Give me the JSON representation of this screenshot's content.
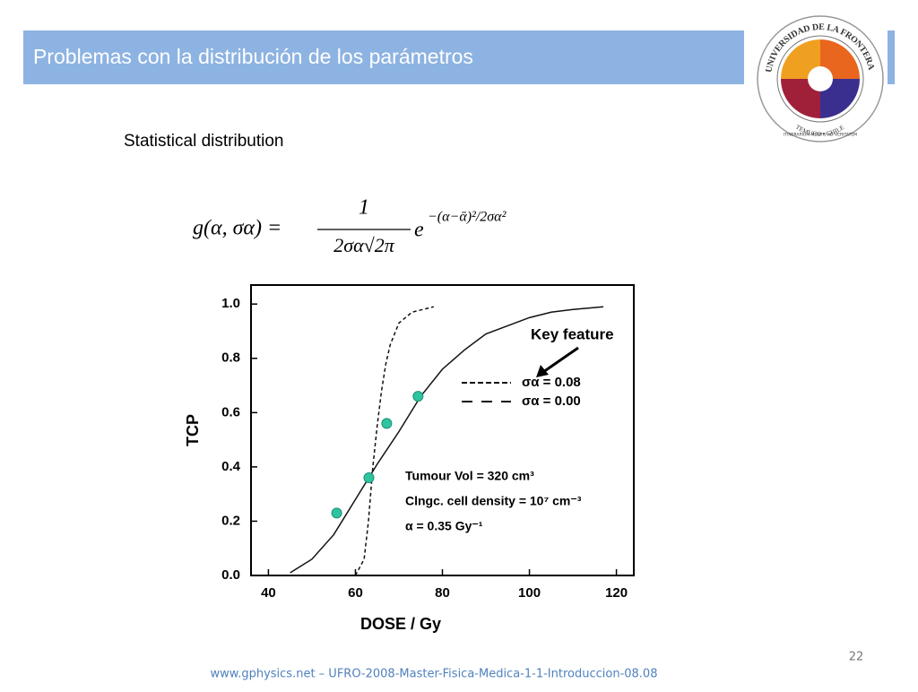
{
  "header": {
    "title": "Problemas con la distribución de los parámetros"
  },
  "logo": {
    "name": "UNIVERSIDAD DE LA FRONTERA",
    "city": "TEMUCO • CHILE",
    "motto": "ITINERARIUM MENTIS AD VERITATEM"
  },
  "subtitle": "Statistical distribution",
  "formula": {
    "lhs": "g(α, σα) =",
    "numerator": "1",
    "denominator": "2σα√2π",
    "base": "e",
    "exponent": "−(α−ᾱ)²/2σα²"
  },
  "chart_data": {
    "type": "line",
    "x_label": "DOSE  /  Gy",
    "y_label": "TCP",
    "xlim": [
      36,
      124
    ],
    "ylim": [
      0,
      1.07
    ],
    "xticks": [
      40,
      60,
      80,
      100,
      120
    ],
    "yticks": [
      {
        "value": 0,
        "label": "0.0"
      },
      {
        "value": 0.2,
        "label": "0.2"
      },
      {
        "value": 0.4,
        "label": "0.4"
      },
      {
        "value": 0.6,
        "label": "0.6"
      },
      {
        "value": 0.8,
        "label": "0.8"
      },
      {
        "value": 1,
        "label": "1.0"
      }
    ],
    "series": [
      {
        "type": "line",
        "name": "σα  =  0.08",
        "color": "#111111",
        "line_style": "solid",
        "x": [
          45,
          50,
          55,
          60,
          65,
          70,
          75,
          80,
          85,
          90,
          95,
          100,
          105,
          110,
          117
        ],
        "values": [
          0.01,
          0.06,
          0.15,
          0.28,
          0.41,
          0.53,
          0.66,
          0.76,
          0.83,
          0.89,
          0.92,
          0.95,
          0.97,
          0.98,
          0.99
        ]
      },
      {
        "type": "line",
        "name": "σα  =  0.00",
        "color": "#111111",
        "line_style": "dashed",
        "x": [
          60,
          62,
          63,
          64,
          65,
          66,
          67,
          68,
          70,
          73,
          78
        ],
        "values": [
          0,
          0.06,
          0.2,
          0.4,
          0.55,
          0.68,
          0.78,
          0.85,
          0.93,
          0.97,
          0.99
        ]
      },
      {
        "type": "scatter",
        "color": "#2ec4a0",
        "x": [
          55.7,
          63.1,
          67.2,
          74.4
        ],
        "values": [
          0.23,
          0.36,
          0.56,
          0.66
        ]
      }
    ],
    "annotations": [
      "Key feature",
      "Tumour Vol = 320 cm³",
      "Clngc. cell density = 10⁷ cm⁻³",
      "α = 0.35 Gy⁻¹"
    ]
  },
  "footer": {
    "page": "22",
    "source": "www.gphysics.net – UFRO-2008-Master-Fisica-Medica-1-1-Introduccion-08.08"
  }
}
